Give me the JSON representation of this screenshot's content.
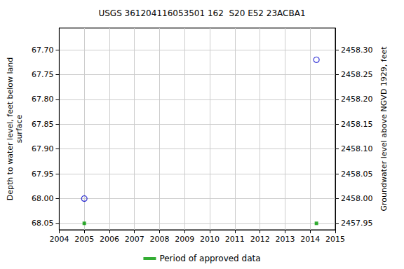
{
  "chart_data": {
    "type": "scatter",
    "title": "USGS 361204116053501 162  S20 E52 23ACBA1",
    "y_label": "Depth to water level, feet below land\nsurface",
    "y2_label": "Groundwater level above NGVD 1929, feet",
    "xlim": [
      2004,
      2015
    ],
    "xticks": [
      2004,
      2005,
      2006,
      2007,
      2008,
      2009,
      2010,
      2011,
      2012,
      2013,
      2014,
      2015
    ],
    "ylim": [
      68.063,
      67.656
    ],
    "yticks": [
      {
        "value": 67.7,
        "label": "67.70"
      },
      {
        "value": 67.75,
        "label": "67.75"
      },
      {
        "value": 67.8,
        "label": "67.80"
      },
      {
        "value": 67.85,
        "label": "67.85"
      },
      {
        "value": 67.9,
        "label": "67.90"
      },
      {
        "value": 67.95,
        "label": "67.95"
      },
      {
        "value": 68.0,
        "label": "68.00"
      },
      {
        "value": 68.05,
        "label": "68.05"
      }
    ],
    "y2lim": [
      2457.937,
      2458.344
    ],
    "y2ticks": [
      {
        "value": 2457.95,
        "label": "2457.95"
      },
      {
        "value": 2458.0,
        "label": "2458.00"
      },
      {
        "value": 2458.05,
        "label": "2458.05"
      },
      {
        "value": 2458.1,
        "label": "2458.10"
      },
      {
        "value": 2458.15,
        "label": "2458.15"
      },
      {
        "value": 2458.2,
        "label": "2458.20"
      },
      {
        "value": 2458.25,
        "label": "2458.25"
      },
      {
        "value": 2458.3,
        "label": "2458.30"
      }
    ],
    "grid": true,
    "legend": "bottom",
    "series": [
      {
        "x": [
          2005.0,
          2014.25
        ],
        "values": [
          68.0,
          67.72
        ],
        "color": "#0000cc",
        "marker": "open_circle"
      },
      {
        "name": "Period of approved data",
        "x": [
          2005.0,
          2014.25
        ],
        "values": [
          68.05,
          68.05
        ],
        "color": "#009900",
        "marker": "square"
      }
    ]
  }
}
